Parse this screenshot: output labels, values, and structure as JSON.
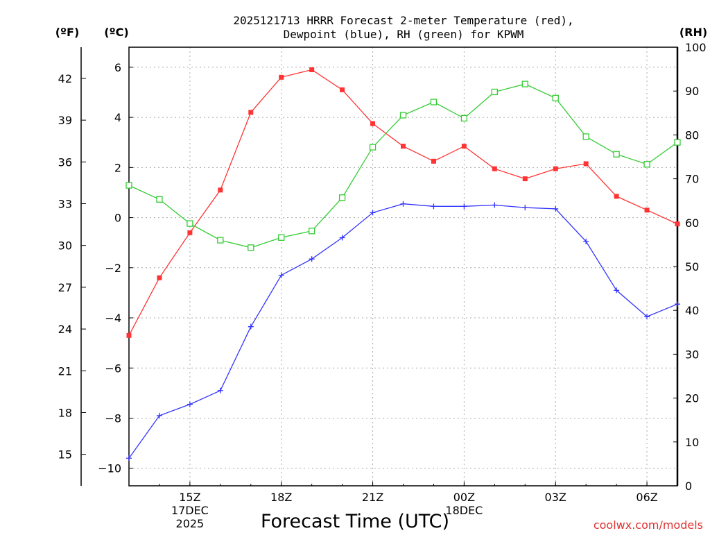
{
  "chart_data": {
    "type": "line",
    "title_line1": "2025121713 HRRR Forecast 2-meter Temperature (red),",
    "title_line2": "Dewpoint (blue), RH (green) for KPWM",
    "xlabel": "Forecast Time (UTC)",
    "left_outer_unit": "(ºF)",
    "left_inner_unit": "(ºC)",
    "right_unit": "(RH)",
    "watermark": "coolwx.com/models",
    "x_hours": [
      0,
      1,
      2,
      3,
      4,
      5,
      6,
      7,
      8,
      9,
      10,
      11,
      12,
      13,
      14,
      15,
      16,
      17,
      18
    ],
    "x_ticks": [
      {
        "hour": 2,
        "label": "15Z",
        "sub1": "17DEC",
        "sub2": "2025"
      },
      {
        "hour": 5,
        "label": "18Z",
        "sub1": "",
        "sub2": ""
      },
      {
        "hour": 8,
        "label": "21Z",
        "sub1": "",
        "sub2": ""
      },
      {
        "hour": 11,
        "label": "00Z",
        "sub1": "18DEC",
        "sub2": ""
      },
      {
        "hour": 14,
        "label": "03Z",
        "sub1": "",
        "sub2": ""
      },
      {
        "hour": 17,
        "label": "06Z",
        "sub1": "",
        "sub2": ""
      }
    ],
    "celsius_ticks": [
      "6",
      "4",
      "2",
      "0",
      "−2",
      "−4",
      "−6",
      "−8",
      "−10"
    ],
    "fahrenheit_ticks": [
      "42",
      "39",
      "36",
      "33",
      "30",
      "27",
      "24",
      "21",
      "18",
      "15"
    ],
    "rh_ticks": [
      "100",
      "90",
      "80",
      "70",
      "60",
      "50",
      "40",
      "30",
      "20",
      "10",
      "0"
    ],
    "ylim_celsius": [
      -10.7,
      6.8
    ],
    "ylim_rh": [
      0,
      100
    ],
    "series": [
      {
        "name": "Temperature",
        "color": "#ff3333",
        "unit": "C",
        "values": [
          -4.7,
          -2.4,
          -0.6,
          1.1,
          4.2,
          5.6,
          5.9,
          5.1,
          3.75,
          2.85,
          2.25,
          2.85,
          1.95,
          1.55,
          1.95,
          2.15,
          0.85,
          0.3,
          -0.25
        ]
      },
      {
        "name": "Dewpoint",
        "color": "#3333ff",
        "unit": "C",
        "values": [
          -9.6,
          -7.9,
          -7.45,
          -6.9,
          -4.35,
          -2.3,
          -1.65,
          -0.8,
          0.2,
          0.55,
          0.45,
          0.45,
          0.5,
          0.4,
          0.35,
          -0.95,
          -2.9,
          -3.95,
          -3.45
        ]
      },
      {
        "name": "RH",
        "color": "#33cc33",
        "unit": "%",
        "values": [
          68.5,
          65.3,
          59.8,
          56.0,
          54.3,
          56.6,
          58.1,
          65.7,
          77.2,
          84.5,
          87.5,
          83.8,
          89.8,
          91.6,
          88.4,
          79.6,
          75.6,
          73.3,
          78.3
        ]
      }
    ]
  }
}
